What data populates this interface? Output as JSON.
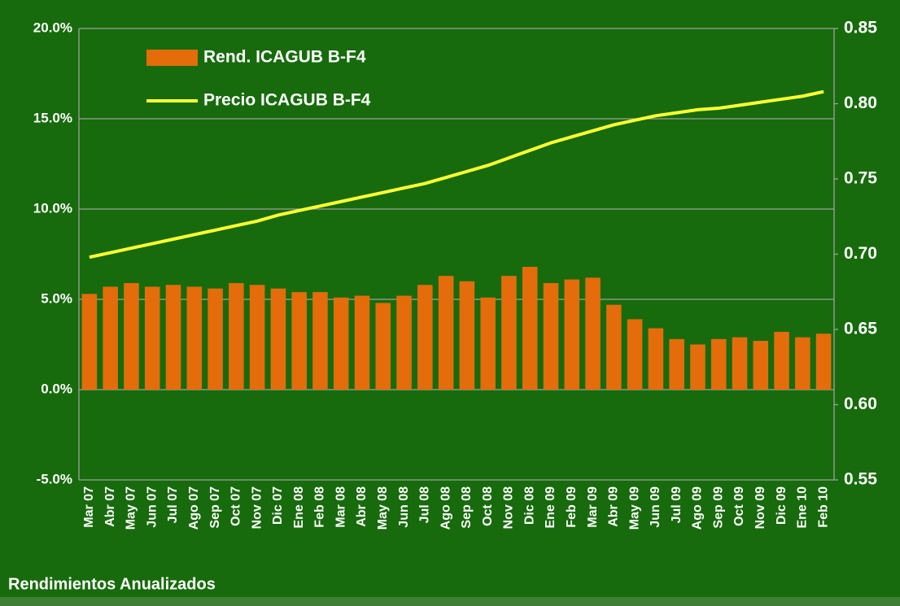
{
  "chart_data": {
    "type": "bar",
    "categories": [
      "Mar 07",
      "Abr 07",
      "May 07",
      "Jun 07",
      "Jul 07",
      "Ago 07",
      "Sep 07",
      "Oct 07",
      "Nov 07",
      "Dic 07",
      "Ene 08",
      "Feb 08",
      "Mar 08",
      "Abr 08",
      "May 08",
      "Jun 08",
      "Jul 08",
      "Ago 08",
      "Sep 08",
      "Oct 08",
      "Nov 08",
      "Dic 08",
      "Ene 09",
      "Feb 09",
      "Mar 09",
      "Abr 09",
      "May 09",
      "Jun 09",
      "Jul 09",
      "Ago 09",
      "Sep 09",
      "Oct 09",
      "Nov 09",
      "Dic 09",
      "Ene 10",
      "Feb 10"
    ],
    "series": [
      {
        "name": "Rend. ICAGUB B-F4",
        "type": "bar",
        "color": "#e46c0a",
        "values": [
          5.3,
          5.7,
          5.9,
          5.7,
          5.8,
          5.7,
          5.6,
          5.9,
          5.8,
          5.6,
          5.4,
          5.4,
          5.1,
          5.2,
          4.8,
          5.2,
          5.8,
          6.3,
          6.0,
          5.1,
          6.3,
          6.8,
          5.9,
          6.1,
          6.2,
          4.7,
          3.9,
          3.4,
          2.8,
          2.5,
          2.8,
          2.9,
          2.7,
          3.2,
          2.9,
          3.1
        ]
      },
      {
        "name": "Precio ICAGUB B-F4",
        "type": "line",
        "axis": "y2",
        "color": "#ffff33",
        "values": [
          0.698,
          0.701,
          0.704,
          0.707,
          0.71,
          0.713,
          0.716,
          0.719,
          0.722,
          0.726,
          0.729,
          0.732,
          0.735,
          0.738,
          0.741,
          0.744,
          0.747,
          0.751,
          0.755,
          0.759,
          0.764,
          0.769,
          0.774,
          0.778,
          0.782,
          0.786,
          0.789,
          0.792,
          0.794,
          0.796,
          0.797,
          0.799,
          0.801,
          0.803,
          0.805,
          0.808
        ]
      }
    ],
    "ylim": [
      -5,
      20
    ],
    "yticks": [
      {
        "value": -5,
        "label": "-5.0%"
      },
      {
        "value": 0,
        "label": "0.0%"
      },
      {
        "value": 5,
        "label": "5.0%"
      },
      {
        "value": 10,
        "label": "10.0%"
      },
      {
        "value": 15,
        "label": "15.0%"
      },
      {
        "value": 20,
        "label": "20.0%"
      }
    ],
    "y2lim": [
      0.55,
      0.85
    ],
    "y2ticks": [
      0.55,
      {
        "value": 0.6,
        "label": "0.60"
      },
      0.65,
      {
        "value": 0.7,
        "label": "0.70"
      },
      0.75,
      {
        "value": 0.8,
        "label": "0.80"
      },
      0.85
    ],
    "grid": true,
    "legend": "top-left",
    "footer": "Rendimientos Anualizados"
  }
}
